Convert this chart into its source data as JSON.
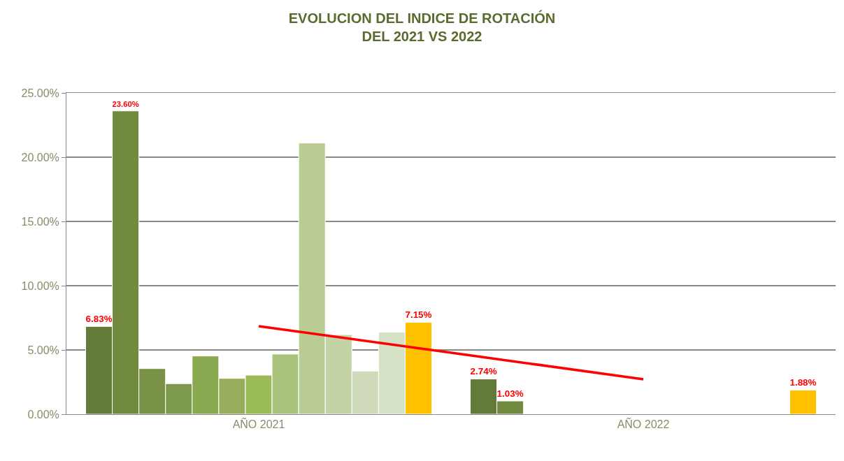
{
  "chart_data": {
    "type": "bar",
    "title": "EVOLUCION DEL INDICE DE ROTACIÓN\nDEL 2021 VS 2022",
    "categories": [
      "AÑO 2021",
      "AÑO 2022"
    ],
    "ylim": [
      0,
      25
    ],
    "yticks": [
      {
        "value": 0,
        "label": "0.00%"
      },
      {
        "value": 5,
        "label": "5.00%"
      },
      {
        "value": 10,
        "label": "10.00%"
      },
      {
        "value": 15,
        "label": "15.00%"
      },
      {
        "value": 20,
        "label": "20.00%"
      },
      {
        "value": 25,
        "label": "25.00%"
      }
    ],
    "grid": "y",
    "series": [
      {
        "color": "#647a38",
        "values": [
          6.83,
          2.74
        ],
        "value_labels": [
          "6.83%",
          "2.74%"
        ]
      },
      {
        "color": "#728a3e",
        "values": [
          23.6,
          1.03
        ],
        "value_labels": [
          "23.60%",
          "1.03%"
        ]
      },
      {
        "color": "#7a9148",
        "values": [
          3.55,
          null
        ]
      },
      {
        "color": "#7e9a4e",
        "values": [
          2.38,
          null
        ]
      },
      {
        "color": "#8aaa52",
        "values": [
          4.53,
          null
        ]
      },
      {
        "color": "#96ae5c",
        "values": [
          2.79,
          null
        ]
      },
      {
        "color": "#9bbb59",
        "values": [
          3.04,
          null
        ]
      },
      {
        "color": "#aac47e",
        "values": [
          4.68,
          null
        ]
      },
      {
        "color": "#b8cc94",
        "values": [
          21.1,
          null
        ]
      },
      {
        "color": "#c2d3a6",
        "values": [
          6.19,
          null
        ]
      },
      {
        "color": "#cdd9b8",
        "values": [
          3.36,
          null
        ]
      },
      {
        "color": "#d6e2c6",
        "values": [
          6.38,
          null
        ]
      },
      {
        "color": "#ffc000",
        "values": [
          7.15,
          1.88
        ],
        "value_labels": [
          "7.15%",
          "1.88%"
        ]
      },
      {
        "type": "line",
        "color": "#ff0000",
        "values": [
          6.85,
          2.72
        ],
        "marker": "none"
      }
    ]
  }
}
